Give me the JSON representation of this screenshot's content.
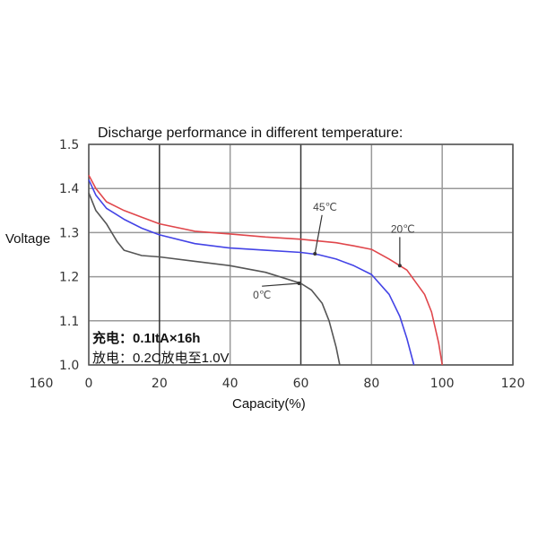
{
  "chart_data": {
    "type": "line",
    "title": "Discharge performance in different temperature:",
    "xlabel": "Capacity(%)",
    "ylabel": "Voltage",
    "xlim": [
      0,
      120
    ],
    "ylim": [
      1.0,
      1.5
    ],
    "x_ticks": [
      "0",
      "20",
      "40",
      "60",
      "80",
      "100",
      "120"
    ],
    "x_tick_values": [
      0,
      20,
      40,
      60,
      80,
      100,
      120
    ],
    "extra_x_label": "160",
    "y_ticks": [
      "1.0",
      "1.1",
      "1.2",
      "1.3",
      "1.4",
      "1.5"
    ],
    "y_tick_values": [
      1.0,
      1.1,
      1.2,
      1.3,
      1.4,
      1.5
    ],
    "grid": true,
    "notes": [
      "充电：0.1ItA×16h",
      "放电：0.2C放电至1.0V"
    ],
    "series": [
      {
        "name": "20℃",
        "color": "#e0464b",
        "label_at": [
          88,
          1.3
        ],
        "arrow_to": [
          88,
          1.225
        ],
        "x": [
          0,
          2,
          5,
          10,
          15,
          20,
          30,
          40,
          50,
          60,
          70,
          75,
          80,
          85,
          90,
          95,
          97,
          99,
          100
        ],
        "y": [
          1.43,
          1.4,
          1.37,
          1.35,
          1.335,
          1.32,
          1.303,
          1.297,
          1.29,
          1.285,
          1.277,
          1.27,
          1.262,
          1.24,
          1.215,
          1.16,
          1.12,
          1.05,
          1.0
        ]
      },
      {
        "name": "45℃",
        "color": "#4343e6",
        "label_at": [
          66,
          1.35
        ],
        "arrow_to": [
          64,
          1.252
        ],
        "x": [
          0,
          2,
          5,
          10,
          15,
          20,
          30,
          40,
          50,
          60,
          65,
          70,
          75,
          80,
          85,
          88,
          90,
          92
        ],
        "y": [
          1.42,
          1.385,
          1.355,
          1.33,
          1.31,
          1.295,
          1.275,
          1.265,
          1.26,
          1.255,
          1.25,
          1.24,
          1.225,
          1.205,
          1.16,
          1.11,
          1.06,
          1.0
        ]
      },
      {
        "name": "0℃",
        "color": "#555555",
        "label_at": [
          49,
          1.15
        ],
        "arrow_to": [
          59.5,
          1.185
        ],
        "x": [
          0,
          2,
          5,
          8,
          10,
          15,
          20,
          30,
          40,
          50,
          60,
          63,
          66,
          68,
          70,
          71
        ],
        "y": [
          1.39,
          1.35,
          1.32,
          1.28,
          1.26,
          1.248,
          1.245,
          1.235,
          1.225,
          1.21,
          1.185,
          1.17,
          1.14,
          1.1,
          1.04,
          1.0
        ]
      }
    ]
  }
}
